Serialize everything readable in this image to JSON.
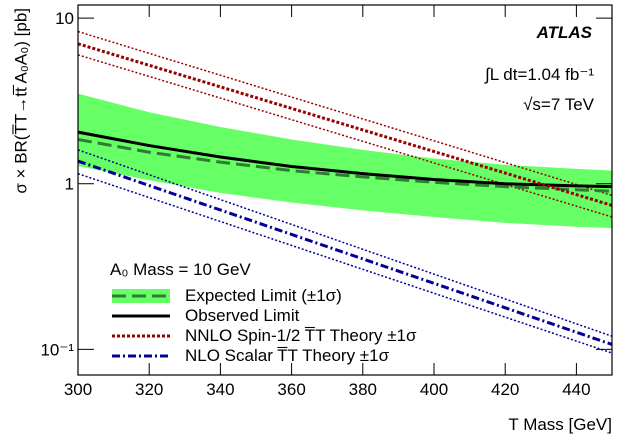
{
  "chart_data": {
    "type": "line",
    "ylabel": "σ × BR(T̅T→tt̅ A₀A₀) [pb]",
    "xlabel": "T Mass [GeV]",
    "annotations": [
      "ATLAS",
      "∫L dt=1.04 fb⁻¹",
      "√s=7 TeV"
    ],
    "legend_title": "A₀ Mass = 10 GeV",
    "log_y": true,
    "xlim": [
      300,
      450
    ],
    "xticks": [
      300,
      320,
      340,
      360,
      380,
      400,
      420,
      440
    ],
    "ylim": [
      0.07,
      12
    ],
    "yticks": [
      {
        "value": 0.1,
        "label": "10⁻¹"
      },
      1,
      10
    ],
    "x": [
      300,
      320,
      340,
      360,
      380,
      400,
      420,
      440,
      450
    ],
    "series": [
      {
        "name": "Expected Limit (±1σ)",
        "color": "#2e7d32",
        "band_color": "#66ff66",
        "style": "dashed",
        "values": [
          1.85,
          1.55,
          1.35,
          1.2,
          1.1,
          1.02,
          0.96,
          0.92,
          0.9
        ],
        "upper": [
          3.5,
          2.7,
          2.2,
          1.85,
          1.6,
          1.42,
          1.3,
          1.23,
          1.2
        ],
        "lower": [
          1.28,
          1.05,
          0.88,
          0.77,
          0.69,
          0.63,
          0.58,
          0.55,
          0.54
        ]
      },
      {
        "name": "Observed Limit",
        "color": "#000000",
        "style": "solid",
        "values": [
          2.05,
          1.7,
          1.45,
          1.27,
          1.15,
          1.06,
          1.0,
          0.97,
          0.96
        ]
      },
      {
        "name": "NNLO Spin-1/2 T̅T Theory ±1σ",
        "color": "#990000",
        "style": "dotted",
        "x": [
          300,
          450
        ],
        "values": [
          7.0,
          0.74
        ],
        "upper": [
          8.3,
          0.85
        ],
        "lower": [
          6.0,
          0.63
        ]
      },
      {
        "name": "NLO Scalar T̅T Theory ±1σ",
        "color": "#000099",
        "style": "dashdot",
        "x": [
          300,
          450
        ],
        "values": [
          1.37,
          0.107
        ],
        "upper": [
          1.6,
          0.12
        ],
        "lower": [
          1.15,
          0.095
        ]
      }
    ]
  }
}
